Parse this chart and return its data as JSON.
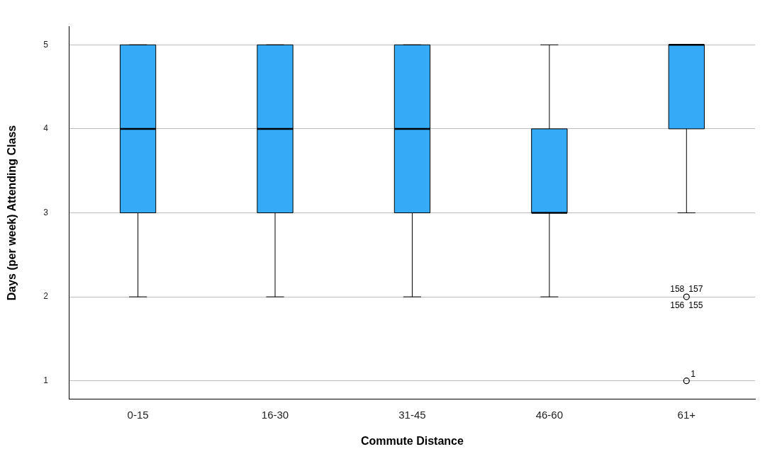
{
  "chart_data": {
    "type": "box",
    "xlabel": "Commute Distance",
    "ylabel": "Days (per week) Attending Class",
    "categories": [
      "0-15",
      "16-30",
      "31-45",
      "46-60",
      "61+"
    ],
    "color": "#35aaf7",
    "boxes": [
      {
        "low": 2,
        "q1": 3,
        "median": 4,
        "q3": 5,
        "high": 5
      },
      {
        "low": 2,
        "q1": 3,
        "median": 4,
        "q3": 5,
        "high": 5
      },
      {
        "low": 2,
        "q1": 3,
        "median": 4,
        "q3": 5,
        "high": 5
      },
      {
        "low": 2,
        "q1": 3,
        "median": 3,
        "q3": 4,
        "high": 5
      },
      {
        "low": 3,
        "q1": 4,
        "median": 5,
        "q3": 5,
        "high": 5,
        "outliers": [
          2,
          1
        ]
      }
    ],
    "ylim": [
      0.78,
      5.22
    ],
    "yticks": [
      1,
      2,
      3,
      4,
      5
    ],
    "grid": "y",
    "legend": false,
    "annotations": [
      "158",
      "157",
      "156",
      "155",
      "1"
    ]
  }
}
